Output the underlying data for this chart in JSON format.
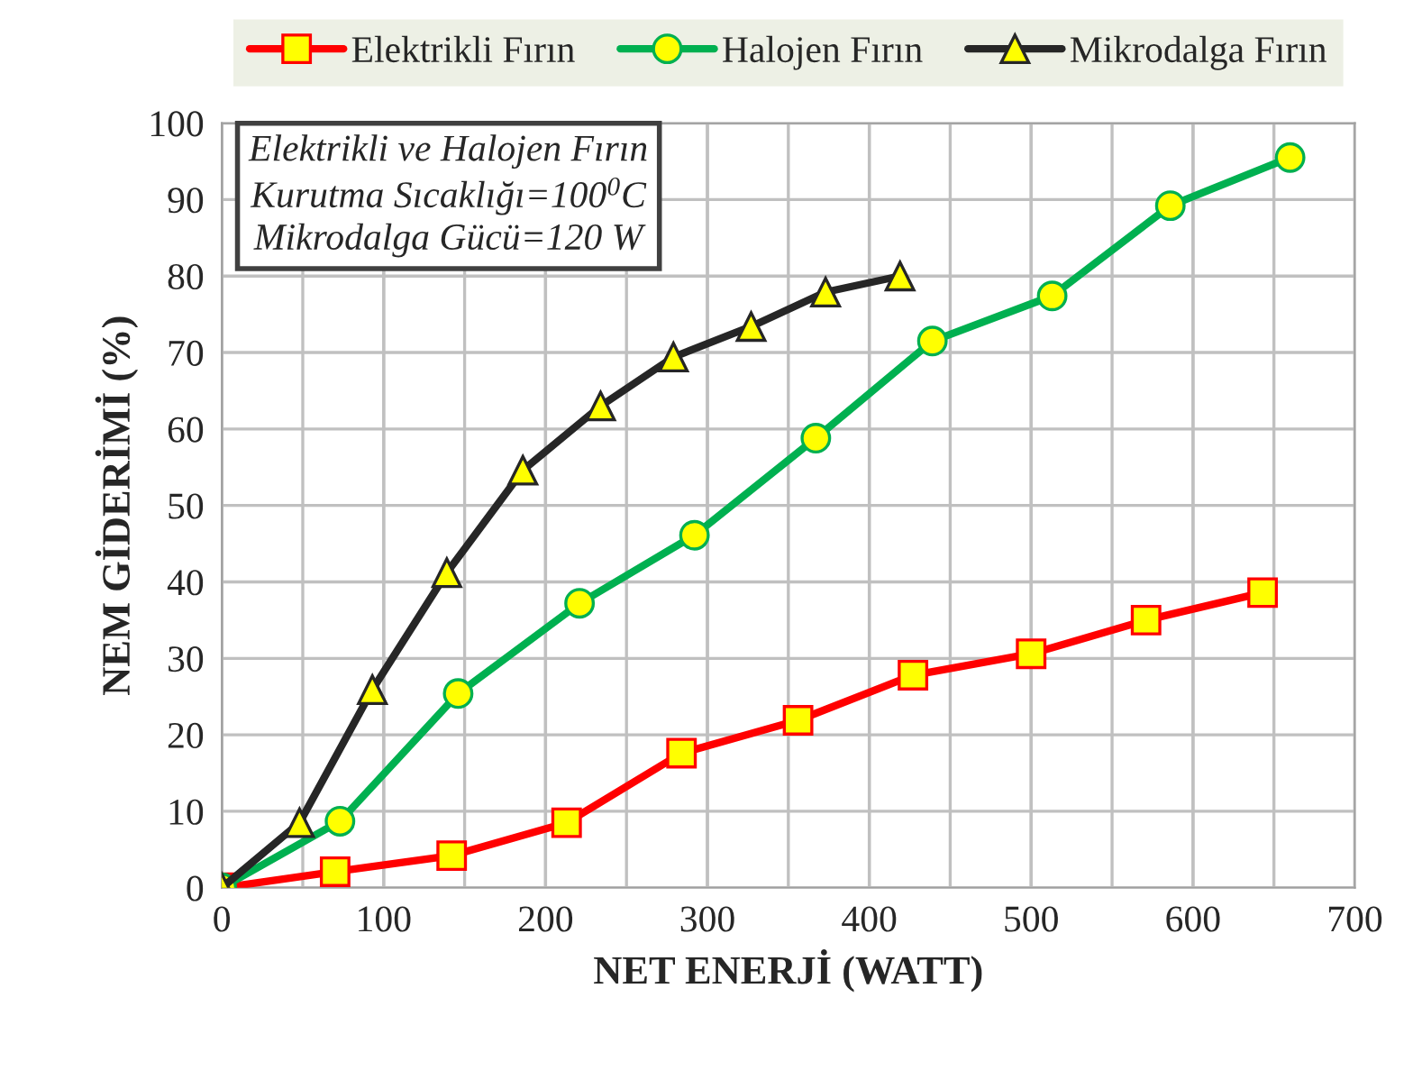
{
  "chart_data": {
    "type": "line",
    "xlabel": "NET ENERJİ (WATT)",
    "ylabel": "NEM GİDERİMİ (%)",
    "annotations": [
      "Elektrikli ve Halojen Fırın\nKurutma Sıcaklığı=100$^{0}$C\nMikrodalga Gücü=120 W"
    ],
    "xlim": [
      0,
      700
    ],
    "xticks": [
      0,
      100,
      200,
      300,
      400,
      500,
      600,
      700
    ],
    "ylim": [
      0,
      100
    ],
    "yticks": [
      0,
      10,
      20,
      30,
      40,
      50,
      60,
      70,
      80,
      90,
      100
    ],
    "grid": true,
    "legend": "top",
    "line_style": "solid",
    "series": [
      {
        "name": "Elektrikli Fırın",
        "color": "#ff0000",
        "marker": "square",
        "x": [
          0,
          70,
          142,
          213,
          284,
          356,
          427,
          500,
          571,
          643
        ],
        "values": [
          0,
          2.1,
          4.2,
          8.5,
          17.6,
          21.9,
          27.8,
          30.6,
          35,
          38.6
        ]
      },
      {
        "name": "Halojen Fırın",
        "color": "#00b050",
        "marker": "circle",
        "x": [
          0,
          73,
          146,
          221,
          292,
          367,
          439,
          513,
          586,
          660
        ],
        "values": [
          0,
          8.7,
          25.4,
          37.2,
          46.1,
          58.8,
          71.5,
          77.4,
          89.2,
          95.5
        ]
      },
      {
        "name": "Mikrodalga Fırın",
        "color": "#262626",
        "marker": "triangle",
        "x": [
          0,
          48,
          93,
          139,
          186,
          234,
          279,
          327,
          373,
          419
        ],
        "values": [
          0,
          8.5,
          25.9,
          41.2,
          54.6,
          63,
          69.4,
          73.4,
          77.9,
          80
        ]
      }
    ]
  }
}
